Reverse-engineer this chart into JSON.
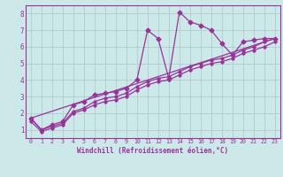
{
  "xlabel": "Windchill (Refroidissement éolien,°C)",
  "bg_color": "#cce8e8",
  "grid_color": "#b0c8c8",
  "line_color": "#993399",
  "xlim": [
    -0.5,
    23.5
  ],
  "ylim": [
    0.5,
    8.5
  ],
  "xticks": [
    0,
    1,
    2,
    3,
    4,
    5,
    6,
    7,
    8,
    9,
    10,
    11,
    12,
    13,
    14,
    15,
    16,
    17,
    18,
    19,
    20,
    21,
    22,
    23
  ],
  "yticks": [
    1,
    2,
    3,
    4,
    5,
    6,
    7,
    8
  ],
  "series1_x": [
    0,
    1,
    2,
    3,
    4,
    5,
    6,
    7,
    8,
    9,
    10,
    11,
    12,
    13,
    14,
    15,
    16,
    17,
    18,
    19,
    20,
    21,
    22,
    23
  ],
  "series1_y": [
    1.7,
    1.0,
    1.3,
    1.5,
    2.5,
    2.7,
    3.1,
    3.2,
    3.3,
    3.5,
    4.0,
    7.0,
    6.5,
    4.1,
    8.1,
    7.5,
    7.3,
    7.0,
    6.2,
    5.5,
    6.3,
    6.4,
    6.5,
    6.5
  ],
  "series2_x": [
    0,
    1,
    2,
    3,
    4,
    5,
    6,
    7,
    8,
    9,
    10,
    11,
    12,
    13,
    14,
    15,
    16,
    17,
    18,
    19,
    20,
    21,
    22,
    23
  ],
  "series2_y": [
    1.7,
    1.0,
    1.2,
    1.4,
    2.1,
    2.3,
    2.7,
    2.9,
    3.0,
    3.2,
    3.6,
    3.9,
    4.1,
    4.2,
    4.5,
    4.8,
    5.0,
    5.2,
    5.3,
    5.5,
    5.8,
    6.0,
    6.3,
    6.5
  ],
  "series3_x": [
    0,
    1,
    2,
    3,
    4,
    5,
    6,
    7,
    8,
    9,
    10,
    11,
    12,
    13,
    14,
    15,
    16,
    17,
    18,
    19,
    20,
    21,
    22,
    23
  ],
  "series3_y": [
    1.5,
    0.9,
    1.1,
    1.3,
    2.0,
    2.2,
    2.5,
    2.7,
    2.8,
    3.0,
    3.4,
    3.7,
    3.9,
    4.0,
    4.3,
    4.6,
    4.8,
    5.0,
    5.1,
    5.3,
    5.6,
    5.8,
    6.0,
    6.3
  ],
  "series4_x": [
    0,
    23
  ],
  "series4_y": [
    1.7,
    6.5
  ]
}
